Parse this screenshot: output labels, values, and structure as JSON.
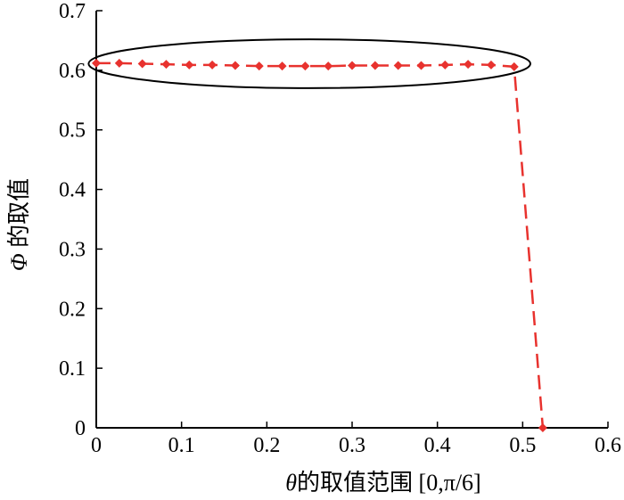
{
  "chart_data": {
    "type": "line",
    "title": "",
    "xlabel": {
      "symbol": "θ",
      "text": "的取值范围 [0,π/6]"
    },
    "ylabel": {
      "symbol": "Φ",
      "text": " 的取值"
    },
    "xlim": [
      0,
      0.6
    ],
    "ylim": [
      0,
      0.7
    ],
    "xticks": [
      "0",
      "0.1",
      "0.2",
      "0.3",
      "0.4",
      "0.5",
      "0.6"
    ],
    "yticks": [
      "0",
      "0.1",
      "0.2",
      "0.3",
      "0.4",
      "0.5",
      "0.6",
      "0.7"
    ],
    "xtick_values": [
      0,
      0.1,
      0.2,
      0.3,
      0.4,
      0.5,
      0.6
    ],
    "ytick_values": [
      0,
      0.1,
      0.2,
      0.3,
      0.4,
      0.5,
      0.6,
      0.7
    ],
    "grid": false,
    "legend": "none",
    "series": [
      {
        "color": "#e8322e",
        "marker": "diamond",
        "line_style": "dashed",
        "x": [
          0.0,
          0.027,
          0.054,
          0.082,
          0.109,
          0.136,
          0.163,
          0.191,
          0.218,
          0.245,
          0.272,
          0.3,
          0.327,
          0.354,
          0.381,
          0.409,
          0.436,
          0.463,
          0.49,
          0.5236
        ],
        "y": [
          0.612,
          0.612,
          0.611,
          0.61,
          0.609,
          0.609,
          0.608,
          0.607,
          0.607,
          0.607,
          0.607,
          0.608,
          0.608,
          0.608,
          0.608,
          0.609,
          0.61,
          0.609,
          0.606,
          0.0
        ]
      }
    ],
    "annotations": [
      {
        "type": "ellipse",
        "stroke": "#000000",
        "description": "highlight",
        "x_center": 0.25,
        "y_center": 0.611,
        "x_radius": 0.259,
        "y_radius": 0.041
      }
    ]
  }
}
